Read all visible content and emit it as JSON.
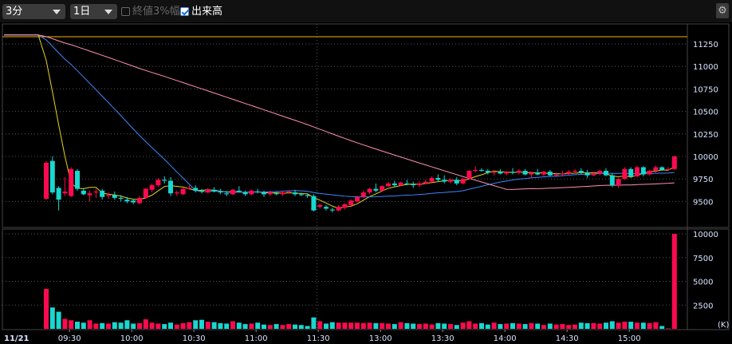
{
  "toolbar": {
    "interval": "3分",
    "period": "1日",
    "close_range_label": "終値3%幅",
    "close_range_checked": false,
    "volume_label": "出来高",
    "volume_checked": true,
    "settings_icon": "gear-icon"
  },
  "colors": {
    "up": "#ff0a50",
    "down": "#18d8d0",
    "ma_short": "#e6d21e",
    "ma_mid": "#3d86ff",
    "ma_long": "#ff8fb0",
    "ref_line": "#f0b400",
    "grid": "#555555"
  },
  "chart_data": {
    "type": "candlestick",
    "date_label": "11/21",
    "x_tick_labels": [
      "09:30",
      "10:00",
      "10:30",
      "11:00",
      "11:30",
      "13:00",
      "13:30",
      "14:00",
      "14:30",
      "15:00"
    ],
    "x_tick_index": [
      4,
      14,
      24,
      34,
      44,
      54,
      64,
      74,
      84,
      94
    ],
    "price_axis": {
      "ticks": [
        11250,
        11000,
        10750,
        10500,
        10250,
        10000,
        9750,
        9500
      ],
      "range": [
        9350,
        11400
      ]
    },
    "volume_axis": {
      "ticks": [
        10000,
        7500,
        5000,
        2500
      ],
      "range": [
        0,
        10000
      ],
      "unit": "(K)"
    },
    "reference_price": 11330,
    "ma_periods": [
      5,
      25,
      75
    ],
    "ma_seed_price": 11350,
    "candles_ohlcv": [
      [
        9530,
        9950,
        9520,
        9930,
        4200
      ],
      [
        9950,
        10000,
        9580,
        9600,
        2250
      ],
      [
        9650,
        9670,
        9400,
        9520,
        1800
      ],
      [
        9590,
        9770,
        9560,
        9610,
        1050
      ],
      [
        9560,
        9880,
        9550,
        9860,
        900
      ],
      [
        9840,
        9860,
        9620,
        9640,
        750
      ],
      [
        9620,
        9650,
        9570,
        9580,
        650
      ],
      [
        9570,
        9620,
        9500,
        9590,
        900
      ],
      [
        9600,
        9640,
        9540,
        9610,
        550
      ],
      [
        9620,
        9640,
        9520,
        9550,
        600
      ],
      [
        9560,
        9600,
        9530,
        9570,
        550
      ],
      [
        9570,
        9610,
        9520,
        9540,
        700
      ],
      [
        9540,
        9570,
        9500,
        9530,
        650
      ],
      [
        9520,
        9550,
        9480,
        9500,
        900
      ],
      [
        9510,
        9530,
        9470,
        9490,
        550
      ],
      [
        9480,
        9560,
        9470,
        9540,
        600
      ],
      [
        9540,
        9650,
        9530,
        9640,
        1000
      ],
      [
        9630,
        9700,
        9600,
        9680,
        650
      ],
      [
        9680,
        9760,
        9660,
        9740,
        550
      ],
      [
        9740,
        9780,
        9700,
        9730,
        500
      ],
      [
        9730,
        9770,
        9560,
        9590,
        650
      ],
      [
        9590,
        9620,
        9560,
        9600,
        450
      ],
      [
        9580,
        9650,
        9570,
        9640,
        600
      ],
      [
        9640,
        9680,
        9630,
        9650,
        700
      ],
      [
        9650,
        9680,
        9600,
        9620,
        900
      ],
      [
        9620,
        9640,
        9590,
        9610,
        950
      ],
      [
        9600,
        9650,
        9590,
        9630,
        750
      ],
      [
        9630,
        9660,
        9600,
        9610,
        700
      ],
      [
        9610,
        9640,
        9580,
        9600,
        600
      ],
      [
        9590,
        9620,
        9560,
        9580,
        550
      ],
      [
        9580,
        9640,
        9570,
        9630,
        800
      ],
      [
        9620,
        9670,
        9600,
        9610,
        650
      ],
      [
        9600,
        9620,
        9560,
        9580,
        500
      ],
      [
        9580,
        9630,
        9570,
        9620,
        550
      ],
      [
        9610,
        9640,
        9590,
        9600,
        650
      ],
      [
        9600,
        9620,
        9550,
        9580,
        450
      ],
      [
        9580,
        9620,
        9560,
        9600,
        400
      ],
      [
        9590,
        9610,
        9570,
        9580,
        500
      ],
      [
        9580,
        9620,
        9560,
        9600,
        400
      ],
      [
        9600,
        9620,
        9590,
        9610,
        500
      ],
      [
        9600,
        9630,
        9560,
        9580,
        450
      ],
      [
        9580,
        9600,
        9560,
        9570,
        400
      ],
      [
        9570,
        9590,
        9540,
        9560,
        300
      ],
      [
        9560,
        9580,
        9390,
        9400,
        1200
      ],
      [
        9440,
        9480,
        9420,
        9460,
        800
      ],
      [
        9440,
        9460,
        9400,
        9420,
        550
      ],
      [
        9410,
        9430,
        9380,
        9400,
        700
      ],
      [
        9400,
        9460,
        9390,
        9440,
        650
      ],
      [
        9430,
        9480,
        9410,
        9470,
        650
      ],
      [
        9460,
        9520,
        9450,
        9510,
        650
      ],
      [
        9500,
        9560,
        9490,
        9550,
        650
      ],
      [
        9550,
        9620,
        9540,
        9600,
        600
      ],
      [
        9600,
        9650,
        9580,
        9640,
        650
      ],
      [
        9640,
        9700,
        9600,
        9620,
        600
      ],
      [
        9620,
        9680,
        9610,
        9670,
        600
      ],
      [
        9670,
        9720,
        9660,
        9700,
        550
      ],
      [
        9700,
        9730,
        9660,
        9680,
        500
      ],
      [
        9680,
        9720,
        9670,
        9710,
        700
      ],
      [
        9700,
        9740,
        9680,
        9690,
        600
      ],
      [
        9690,
        9720,
        9650,
        9680,
        550
      ],
      [
        9680,
        9720,
        9660,
        9700,
        500
      ],
      [
        9700,
        9740,
        9690,
        9720,
        550
      ],
      [
        9720,
        9780,
        9700,
        9760,
        450
      ],
      [
        9760,
        9800,
        9720,
        9740,
        600
      ],
      [
        9740,
        9790,
        9700,
        9720,
        550
      ],
      [
        9720,
        9760,
        9700,
        9740,
        500
      ],
      [
        9740,
        9770,
        9680,
        9700,
        400
      ],
      [
        9700,
        9760,
        9690,
        9750,
        650
      ],
      [
        9750,
        9850,
        9740,
        9840,
        800
      ],
      [
        9840,
        9890,
        9820,
        9850,
        550
      ],
      [
        9850,
        9870,
        9830,
        9840,
        600
      ],
      [
        9840,
        9860,
        9800,
        9820,
        450
      ],
      [
        9820,
        9850,
        9790,
        9830,
        650
      ],
      [
        9830,
        9860,
        9800,
        9810,
        500
      ],
      [
        9810,
        9840,
        9790,
        9830,
        550
      ],
      [
        9830,
        9870,
        9800,
        9820,
        600
      ],
      [
        9820,
        9860,
        9800,
        9840,
        550
      ],
      [
        9840,
        9860,
        9790,
        9800,
        500
      ],
      [
        9800,
        9830,
        9760,
        9820,
        600
      ],
      [
        9820,
        9860,
        9790,
        9800,
        550
      ],
      [
        9800,
        9840,
        9780,
        9830,
        400
      ],
      [
        9830,
        9850,
        9780,
        9790,
        550
      ],
      [
        9790,
        9820,
        9770,
        9800,
        450
      ],
      [
        9800,
        9840,
        9780,
        9810,
        500
      ],
      [
        9810,
        9850,
        9790,
        9830,
        400
      ],
      [
        9830,
        9860,
        9810,
        9840,
        450
      ],
      [
        9840,
        9870,
        9800,
        9820,
        650
      ],
      [
        9820,
        9850,
        9760,
        9790,
        600
      ],
      [
        9790,
        9830,
        9780,
        9810,
        600
      ],
      [
        9810,
        9850,
        9790,
        9840,
        550
      ],
      [
        9840,
        9870,
        9780,
        9790,
        650
      ],
      [
        9790,
        9810,
        9660,
        9680,
        800
      ],
      [
        9680,
        9760,
        9650,
        9750,
        650
      ],
      [
        9750,
        9880,
        9740,
        9860,
        750
      ],
      [
        9860,
        9880,
        9760,
        9780,
        750
      ],
      [
        9780,
        9900,
        9770,
        9880,
        650
      ],
      [
        9880,
        9890,
        9780,
        9800,
        650
      ],
      [
        9800,
        9850,
        9790,
        9840,
        600
      ],
      [
        9840,
        9900,
        9820,
        9880,
        700
      ],
      [
        9880,
        9890,
        9840,
        9850,
        300
      ],
      [
        9850,
        9880,
        9840,
        9860,
        50
      ],
      [
        9860,
        10010,
        9850,
        10000,
        10000
      ]
    ]
  }
}
